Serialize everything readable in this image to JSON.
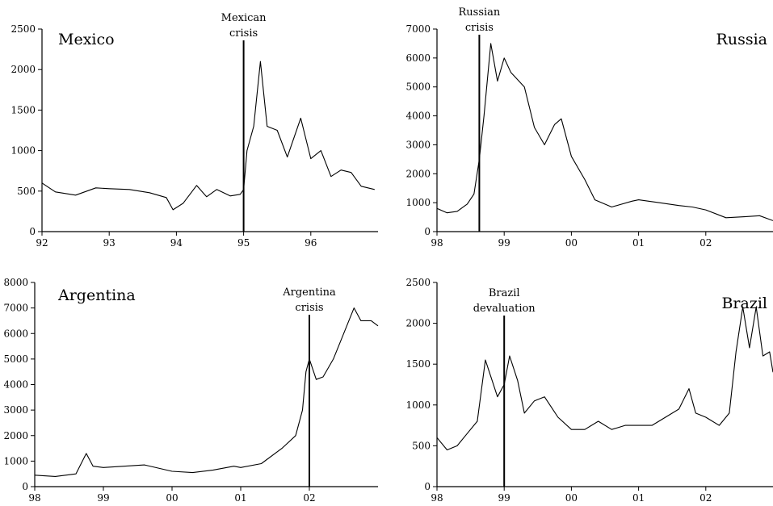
{
  "chart_data": [
    {
      "type": "line",
      "country": "Mexico",
      "event_label": [
        "Mexican",
        "crisis"
      ],
      "event_x": 95.0,
      "xlim": [
        92,
        97
      ],
      "ylim": [
        0,
        2500
      ],
      "x_ticks": [
        92,
        93,
        94,
        95,
        96
      ],
      "x_tick_labels": [
        "92",
        "93",
        "94",
        "95",
        "96"
      ],
      "y_ticks": [
        0,
        500,
        1000,
        1500,
        2000,
        2500
      ],
      "y_tick_labels": [
        "0",
        "500",
        "1000",
        "1500",
        "2000",
        "2500"
      ],
      "series": [
        {
          "x": [
            92.0,
            92.2,
            92.5,
            92.8,
            93.0,
            93.3,
            93.6,
            93.85,
            93.95,
            94.1,
            94.3,
            94.45,
            94.6,
            94.8,
            94.95,
            95.0,
            95.05,
            95.15,
            95.25,
            95.35,
            95.5,
            95.65,
            95.85,
            96.0,
            96.15,
            96.3,
            96.45,
            96.6,
            96.75,
            96.95
          ],
          "y": [
            600,
            490,
            450,
            540,
            530,
            520,
            480,
            420,
            270,
            350,
            570,
            430,
            520,
            440,
            460,
            520,
            1000,
            1300,
            2100,
            1300,
            1250,
            920,
            1400,
            900,
            1000,
            680,
            760,
            730,
            560,
            520
          ]
        }
      ]
    },
    {
      "type": "line",
      "country": "Russia",
      "event_label": [
        "Russian",
        "crisis"
      ],
      "event_x": 98.63,
      "xlim": [
        98,
        103
      ],
      "ylim": [
        0,
        7000
      ],
      "x_ticks": [
        98,
        99,
        100,
        101,
        102
      ],
      "x_tick_labels": [
        "98",
        "99",
        "00",
        "01",
        "02"
      ],
      "y_ticks": [
        0,
        1000,
        2000,
        3000,
        4000,
        5000,
        6000,
        7000
      ],
      "y_tick_labels": [
        "0",
        "1000",
        "2000",
        "3000",
        "4000",
        "5000",
        "6000",
        "7000"
      ],
      "series": [
        {
          "x": [
            98.0,
            98.15,
            98.3,
            98.45,
            98.55,
            98.63,
            98.7,
            98.8,
            98.9,
            99.0,
            99.1,
            99.3,
            99.45,
            99.6,
            99.75,
            99.85,
            100.0,
            100.2,
            100.35,
            100.6,
            100.9,
            101.0,
            101.3,
            101.6,
            101.8,
            102.0,
            102.3,
            102.6,
            102.8,
            103.0
          ],
          "y": [
            800,
            650,
            700,
            950,
            1300,
            2500,
            4000,
            6500,
            5200,
            6000,
            5500,
            5000,
            3600,
            3000,
            3700,
            3900,
            2600,
            1800,
            1100,
            850,
            1050,
            1100,
            1000,
            900,
            850,
            750,
            480,
            520,
            550,
            380
          ]
        }
      ]
    },
    {
      "type": "line",
      "country": "Argentina",
      "event_label": [
        "Argentina",
        "crisis"
      ],
      "event_x": 102.0,
      "xlim": [
        98,
        103
      ],
      "ylim": [
        0,
        8000
      ],
      "x_ticks": [
        98,
        99,
        100,
        101,
        102
      ],
      "x_tick_labels": [
        "98",
        "99",
        "00",
        "01",
        "02"
      ],
      "y_ticks": [
        0,
        1000,
        2000,
        3000,
        4000,
        5000,
        6000,
        7000,
        8000
      ],
      "y_tick_labels": [
        "0",
        "1000",
        "2000",
        "3000",
        "4000",
        "5000",
        "6000",
        "7000",
        "8000"
      ],
      "series": [
        {
          "x": [
            98.0,
            98.3,
            98.6,
            98.75,
            98.85,
            99.0,
            99.3,
            99.6,
            100.0,
            100.3,
            100.6,
            100.9,
            101.0,
            101.3,
            101.6,
            101.8,
            101.9,
            101.95,
            102.0,
            102.1,
            102.2,
            102.35,
            102.5,
            102.65,
            102.75,
            102.9,
            103.0
          ],
          "y": [
            450,
            400,
            500,
            1300,
            800,
            750,
            800,
            850,
            600,
            550,
            650,
            800,
            750,
            900,
            1500,
            2000,
            3000,
            4500,
            5000,
            4200,
            4300,
            5000,
            6000,
            7000,
            6500,
            6500,
            6300
          ]
        }
      ]
    },
    {
      "type": "line",
      "country": "Brazil",
      "event_label": [
        "Brazil",
        "devaluation"
      ],
      "event_x": 99.0,
      "xlim": [
        98,
        103
      ],
      "ylim": [
        0,
        2500
      ],
      "x_ticks": [
        98,
        99,
        100,
        101,
        102
      ],
      "x_tick_labels": [
        "98",
        "99",
        "00",
        "01",
        "02"
      ],
      "y_ticks": [
        0,
        500,
        1000,
        1500,
        2000,
        2500
      ],
      "y_tick_labels": [
        "0",
        "500",
        "1000",
        "1500",
        "2000",
        "2500"
      ],
      "series": [
        {
          "x": [
            98.0,
            98.15,
            98.3,
            98.45,
            98.6,
            98.72,
            98.8,
            98.9,
            99.0,
            99.08,
            99.2,
            99.3,
            99.45,
            99.6,
            99.8,
            100.0,
            100.2,
            100.4,
            100.6,
            100.8,
            101.0,
            101.2,
            101.4,
            101.6,
            101.75,
            101.85,
            102.0,
            102.2,
            102.35,
            102.45,
            102.55,
            102.65,
            102.75,
            102.85,
            102.95,
            103.0
          ],
          "y": [
            600,
            450,
            500,
            650,
            800,
            1550,
            1350,
            1100,
            1250,
            1600,
            1300,
            900,
            1050,
            1100,
            850,
            700,
            700,
            800,
            700,
            750,
            750,
            750,
            850,
            950,
            1200,
            900,
            850,
            750,
            900,
            1650,
            2200,
            1700,
            2200,
            1600,
            1650,
            1400
          ]
        }
      ]
    }
  ]
}
